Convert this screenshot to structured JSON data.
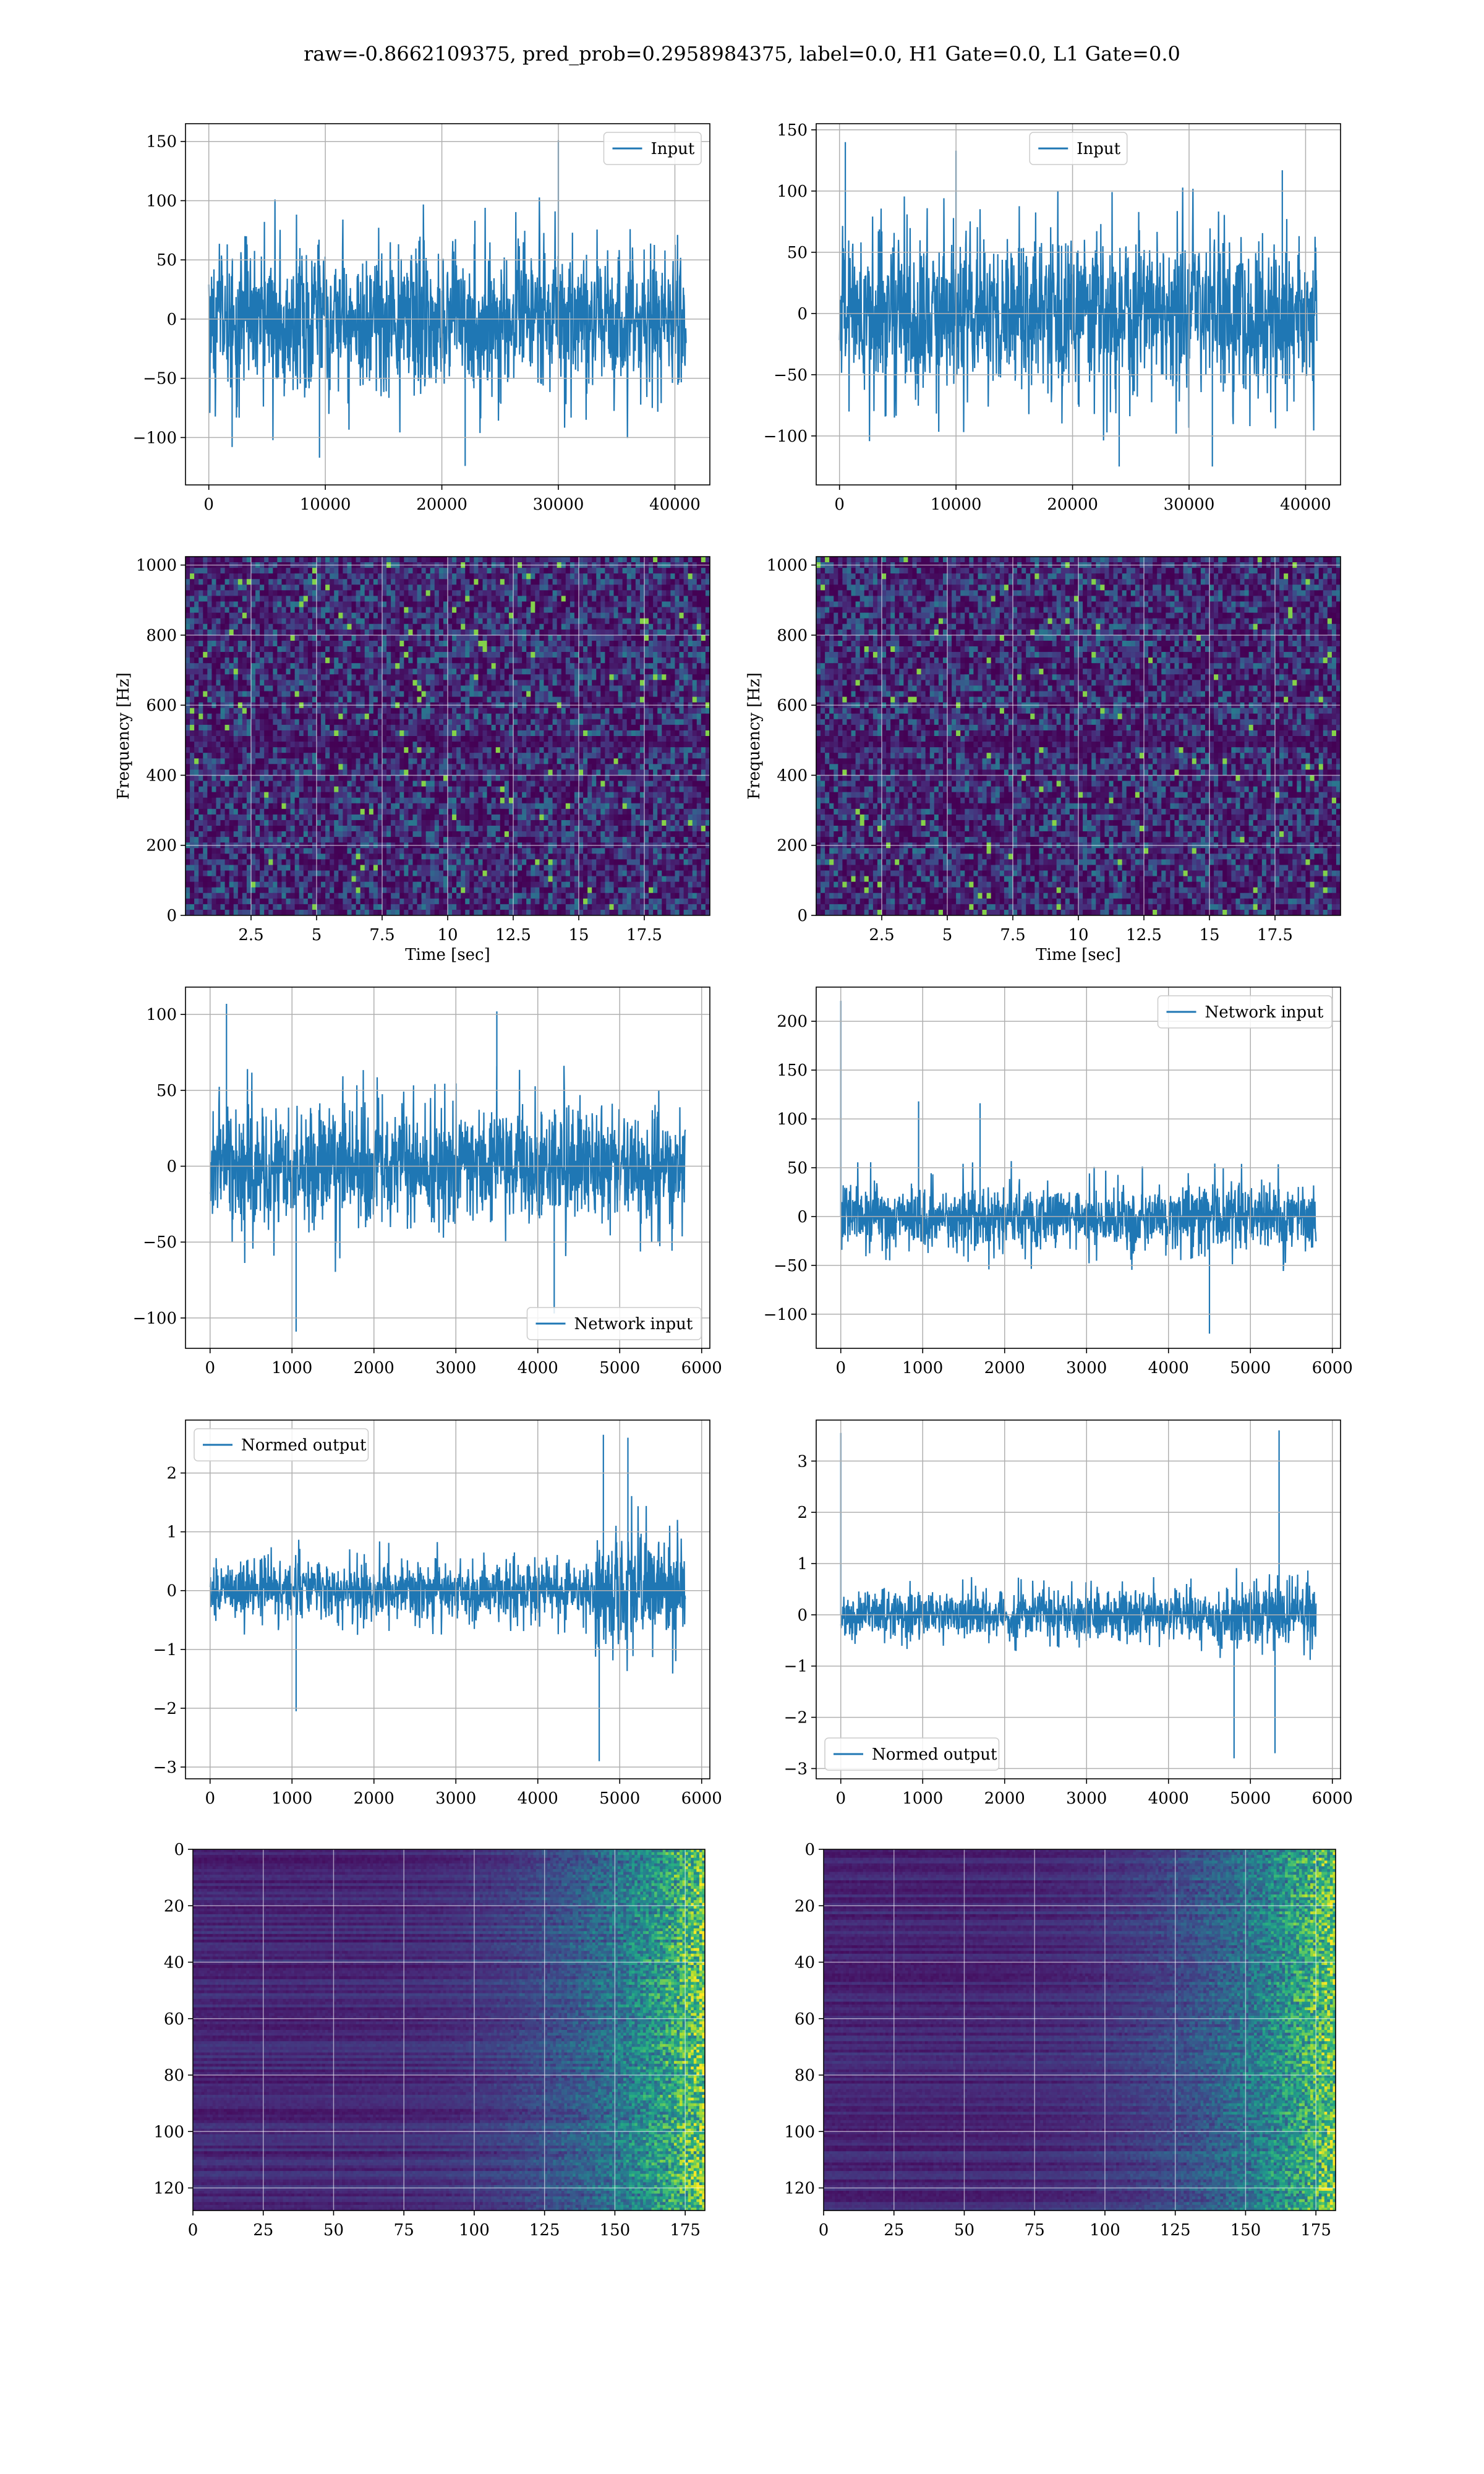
{
  "figure": {
    "title": "raw=-0.8662109375, pred_prob=0.2958984375, label=0.0, H1 Gate=0.0, L1 Gate=0.0"
  },
  "colors": {
    "line": "#1f77b4",
    "grid": "#b0b0b0",
    "viridis_low": "#440154",
    "viridis_high": "#fde725"
  },
  "chart_data": [
    {
      "id": "h1-input",
      "type": "line",
      "title": "",
      "xlabel": "",
      "ylabel": "",
      "xlim": [
        -2000,
        43000
      ],
      "ylim": [
        -140,
        165
      ],
      "xticks": [
        0,
        10000,
        20000,
        30000,
        40000
      ],
      "yticks": [
        -100,
        -50,
        0,
        50,
        100,
        150
      ],
      "grid": true,
      "legend": "upper right",
      "series": [
        {
          "name": "Input",
          "n": 40960,
          "envelope": 55,
          "max": 151,
          "min": -124,
          "peaks": [
            [
              30000,
              151
            ],
            [
              22000,
              -124
            ],
            [
              9500,
              -117
            ],
            [
              2000,
              -108
            ]
          ]
        }
      ]
    },
    {
      "id": "l1-input",
      "type": "line",
      "title": "",
      "xlabel": "",
      "ylabel": "",
      "xlim": [
        -2000,
        43000
      ],
      "ylim": [
        -140,
        155
      ],
      "xticks": [
        0,
        10000,
        20000,
        30000,
        40000
      ],
      "yticks": [
        -100,
        -50,
        0,
        50,
        100,
        150
      ],
      "grid": true,
      "legend": "upper center",
      "series": [
        {
          "name": "Input",
          "n": 40960,
          "envelope": 55,
          "max": 140,
          "min": -125,
          "peaks": [
            [
              500,
              140
            ],
            [
              32000,
              -125
            ],
            [
              24000,
              -125
            ],
            [
              10000,
              133
            ],
            [
              38000,
              117
            ]
          ]
        }
      ]
    },
    {
      "id": "h1-spectrogram",
      "type": "heatmap",
      "title": "",
      "xlabel": "Time [sec]",
      "ylabel": "Frequency [Hz]",
      "xlim": [
        0,
        20
      ],
      "ylim": [
        0,
        1024
      ],
      "xticks": [
        2.5,
        5.0,
        7.5,
        10.0,
        12.5,
        15.0,
        17.5
      ],
      "yticks": [
        0,
        200,
        400,
        600,
        800,
        1000
      ],
      "grid": true,
      "colormap": "viridis",
      "rows": 64,
      "cols": 120,
      "seed": 11
    },
    {
      "id": "l1-spectrogram",
      "type": "heatmap",
      "title": "",
      "xlabel": "Time [sec]",
      "ylabel": "Frequency [Hz]",
      "xlim": [
        0,
        20
      ],
      "ylim": [
        0,
        1024
      ],
      "xticks": [
        2.5,
        5.0,
        7.5,
        10.0,
        12.5,
        15.0,
        17.5
      ],
      "yticks": [
        0,
        200,
        400,
        600,
        800,
        1000
      ],
      "grid": true,
      "colormap": "viridis",
      "rows": 64,
      "cols": 120,
      "seed": 23
    },
    {
      "id": "h1-network-input",
      "type": "line",
      "title": "",
      "xlabel": "",
      "ylabel": "",
      "xlim": [
        -300,
        6100
      ],
      "ylim": [
        -120,
        118
      ],
      "xticks": [
        0,
        1000,
        2000,
        3000,
        4000,
        5000,
        6000
      ],
      "yticks": [
        -100,
        -50,
        0,
        50,
        100
      ],
      "grid": true,
      "legend": "lower right",
      "series": [
        {
          "name": "Network input",
          "n": 5800,
          "envelope": 35,
          "max": 107,
          "min": -109,
          "peaks": [
            [
              200,
              107
            ],
            [
              1050,
              -109
            ],
            [
              3500,
              102
            ],
            [
              4200,
              -97
            ]
          ]
        }
      ]
    },
    {
      "id": "l1-network-input",
      "type": "line",
      "title": "",
      "xlabel": "",
      "ylabel": "",
      "xlim": [
        -300,
        6100
      ],
      "ylim": [
        -135,
        235
      ],
      "xticks": [
        0,
        1000,
        2000,
        3000,
        4000,
        5000,
        6000
      ],
      "yticks": [
        -100,
        -50,
        0,
        50,
        100,
        150,
        200
      ],
      "grid": true,
      "legend": "upper right",
      "series": [
        {
          "name": "Network input",
          "n": 5800,
          "envelope": 30,
          "max": 221,
          "min": -120,
          "peaks": [
            [
              0,
              221
            ],
            [
              950,
              118
            ],
            [
              4500,
              -120
            ],
            [
              1700,
              116
            ]
          ]
        }
      ]
    },
    {
      "id": "h1-normed-output",
      "type": "line",
      "title": "",
      "xlabel": "",
      "ylabel": "",
      "xlim": [
        -300,
        6100
      ],
      "ylim": [
        -3.2,
        2.9
      ],
      "xticks": [
        0,
        1000,
        2000,
        3000,
        4000,
        5000,
        6000
      ],
      "yticks": [
        -3,
        -2,
        -1,
        0,
        1,
        2
      ],
      "grid": true,
      "legend": "upper left",
      "series": [
        {
          "name": "Normed output",
          "n": 5800,
          "envelope": 0.45,
          "max": 2.7,
          "min": -2.9,
          "burst": [
            4700,
            5800,
            1.9
          ],
          "peaks": [
            [
              4800,
              2.65
            ],
            [
              4750,
              -2.9
            ],
            [
              1050,
              -2.05
            ],
            [
              5100,
              2.6
            ]
          ]
        }
      ]
    },
    {
      "id": "l1-normed-output",
      "type": "line",
      "title": "",
      "xlabel": "",
      "ylabel": "",
      "xlim": [
        -300,
        6100
      ],
      "ylim": [
        -3.2,
        3.8
      ],
      "xticks": [
        0,
        1000,
        2000,
        3000,
        4000,
        5000,
        6000
      ],
      "yticks": [
        -3,
        -2,
        -1,
        0,
        1,
        2,
        3
      ],
      "grid": true,
      "legend": "lower left",
      "series": [
        {
          "name": "Normed output",
          "n": 5800,
          "envelope": 0.4,
          "max": 3.6,
          "min": -2.8,
          "burst": [
            4500,
            5800,
            1.5
          ],
          "peaks": [
            [
              0,
              3.55
            ],
            [
              5350,
              3.6
            ],
            [
              4800,
              -2.8
            ],
            [
              5300,
              -2.7
            ]
          ]
        }
      ]
    },
    {
      "id": "h1-feature-map",
      "type": "heatmap",
      "title": "",
      "xlabel": "",
      "ylabel": "",
      "xlim": [
        0,
        182
      ],
      "ylim": [
        128,
        0
      ],
      "xticks": [
        0,
        25,
        50,
        75,
        100,
        125,
        150,
        175
      ],
      "yticks": [
        0,
        20,
        40,
        60,
        80,
        100,
        120
      ],
      "grid": true,
      "colormap": "viridis",
      "rows": 128,
      "cols": 182,
      "seed": 37
    },
    {
      "id": "l1-feature-map",
      "type": "heatmap",
      "title": "",
      "xlabel": "",
      "ylabel": "",
      "xlim": [
        0,
        182
      ],
      "ylim": [
        128,
        0
      ],
      "xticks": [
        0,
        25,
        50,
        75,
        100,
        125,
        150,
        175
      ],
      "yticks": [
        0,
        20,
        40,
        60,
        80,
        100,
        120
      ],
      "grid": true,
      "colormap": "viridis",
      "rows": 128,
      "cols": 182,
      "seed": 53
    }
  ]
}
